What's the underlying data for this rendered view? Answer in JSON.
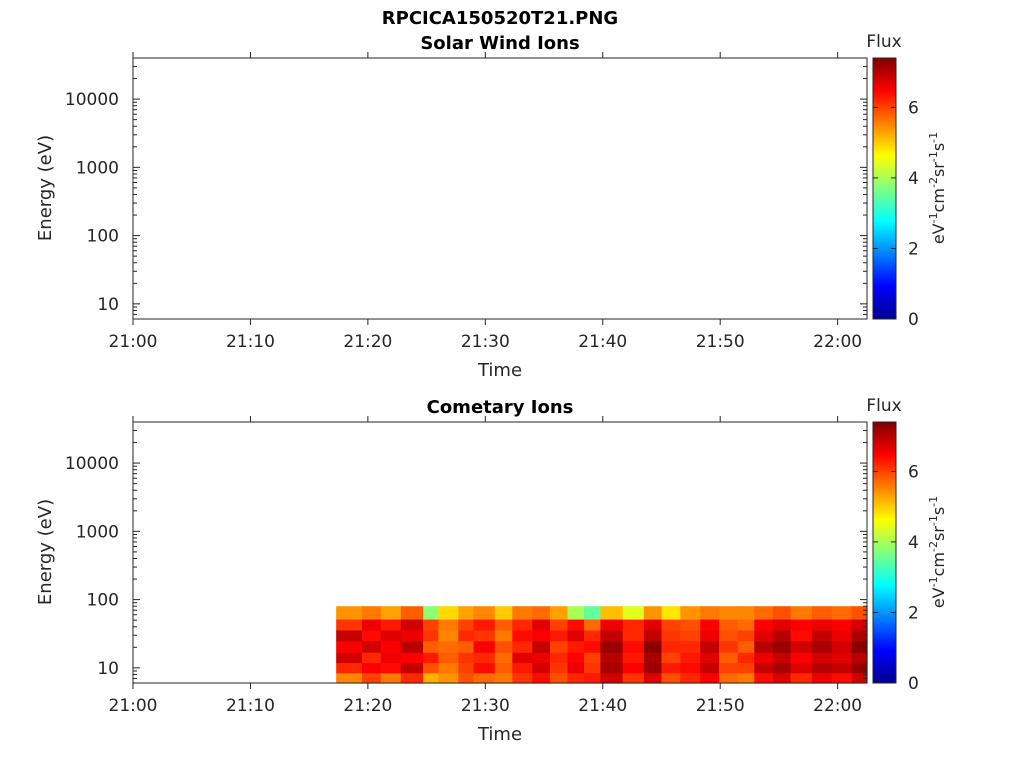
{
  "figure_title": "RPCICA150520T21.PNG",
  "chart_data": [
    {
      "type": "heatmap",
      "title": "Solar Wind Ions",
      "xlabel": "Time",
      "ylabel": "Energy (eV)",
      "x_ticks": [
        "21:00",
        "21:10",
        "21:20",
        "21:30",
        "21:40",
        "21:50",
        "22:00"
      ],
      "x_range_minutes": [
        0,
        62.5
      ],
      "y_scale": "log",
      "y_range": [
        6,
        40000
      ],
      "y_ticks": [
        "10",
        "100",
        "1000",
        "10000"
      ],
      "colorbar": {
        "label": "Flux",
        "unit": "eV-1cm-2sr-1s-1",
        "range": [
          0,
          7.4
        ],
        "ticks": [
          "0",
          "2",
          "4",
          "6"
        ],
        "colormap": "jet"
      },
      "data": []
    },
    {
      "type": "heatmap",
      "title": "Cometary Ions",
      "xlabel": "Time",
      "ylabel": "Energy (eV)",
      "x_ticks": [
        "21:00",
        "21:10",
        "21:20",
        "21:30",
        "21:40",
        "21:50",
        "22:00"
      ],
      "x_range_minutes": [
        0,
        62.5
      ],
      "y_scale": "log",
      "y_range": [
        6,
        40000
      ],
      "y_ticks": [
        "10",
        "100",
        "1000",
        "10000"
      ],
      "colorbar": {
        "label": "Flux",
        "unit": "eV-1cm-2sr-1s-1",
        "range": [
          0,
          7.4
        ],
        "ticks": [
          "0",
          "2",
          "4",
          "6"
        ],
        "colormap": "jet"
      },
      "energy_bands_eV": [
        6,
        8.5,
        12,
        17,
        25,
        36,
        52,
        80
      ],
      "time_bins_minutes": [
        17.3,
        19.5,
        21.1,
        22.8,
        24.7,
        26.0,
        27.7,
        29.0,
        30.8,
        32.3,
        34.0,
        35.5,
        37.0,
        38.4,
        39.8,
        41.7,
        43.5,
        45.0,
        46.6,
        48.3,
        49.9,
        51.5,
        52.9,
        54.5,
        56.0,
        57.8,
        59.5,
        61.2,
        62.5
      ],
      "flux_columns": [
        [
          5.5,
          6.2,
          6.8,
          6.5,
          6.9,
          6.1,
          5.4
        ],
        [
          6.0,
          6.5,
          6.2,
          6.8,
          6.4,
          6.6,
          5.6
        ],
        [
          5.6,
          6.4,
          6.6,
          6.5,
          6.7,
          6.3,
          5.3
        ],
        [
          6.2,
          6.9,
          6.5,
          7.0,
          6.6,
          6.8,
          5.8
        ],
        [
          5.2,
          5.9,
          6.3,
          5.8,
          6.1,
          6.0,
          3.8
        ],
        [
          5.4,
          5.6,
          5.8,
          5.7,
          5.5,
          5.6,
          4.9
        ],
        [
          5.9,
          6.0,
          6.1,
          5.8,
          6.2,
          6.0,
          5.3
        ],
        [
          5.7,
          6.4,
          6.2,
          6.5,
          6.1,
          6.3,
          5.5
        ],
        [
          5.6,
          5.8,
          5.7,
          5.9,
          5.6,
          5.8,
          5.0
        ],
        [
          6.1,
          6.3,
          6.7,
          6.2,
          6.4,
          6.2,
          5.6
        ],
        [
          6.4,
          6.8,
          6.6,
          6.9,
          6.5,
          6.7,
          5.7
        ],
        [
          5.9,
          6.1,
          6.2,
          6.0,
          6.3,
          6.0,
          5.3
        ],
        [
          6.2,
          6.6,
          6.5,
          6.3,
          6.7,
          6.4,
          4.0
        ],
        [
          6.3,
          6.1,
          6.0,
          6.4,
          6.2,
          5.7,
          3.5
        ],
        [
          6.8,
          7.1,
          7.0,
          7.2,
          6.9,
          6.6,
          5.1
        ],
        [
          6.1,
          6.5,
          6.3,
          6.4,
          6.2,
          6.2,
          4.4
        ],
        [
          6.7,
          7.2,
          7.1,
          7.3,
          6.9,
          6.7,
          5.4
        ],
        [
          5.9,
          6.3,
          6.0,
          6.2,
          6.1,
          6.0,
          4.8
        ],
        [
          6.2,
          6.4,
          6.3,
          6.2,
          6.0,
          5.9,
          5.4
        ],
        [
          6.5,
          6.9,
          6.7,
          6.9,
          6.6,
          6.5,
          5.6
        ],
        [
          5.7,
          6.0,
          5.8,
          6.1,
          5.9,
          5.8,
          5.5
        ],
        [
          5.6,
          6.0,
          6.2,
          5.8,
          6.0,
          5.7,
          5.5
        ],
        [
          6.4,
          6.9,
          6.6,
          7.0,
          6.7,
          6.5,
          5.7
        ],
        [
          6.7,
          7.1,
          6.9,
          7.2,
          7.0,
          6.7,
          5.9
        ],
        [
          6.2,
          6.7,
          6.5,
          6.8,
          6.4,
          6.5,
          5.6
        ],
        [
          6.6,
          7.0,
          6.8,
          7.1,
          6.9,
          6.6,
          5.8
        ],
        [
          6.4,
          6.9,
          6.7,
          6.8,
          6.6,
          6.5,
          5.7
        ],
        [
          6.8,
          7.2,
          7.0,
          7.3,
          7.1,
          6.8,
          5.9
        ]
      ]
    }
  ]
}
